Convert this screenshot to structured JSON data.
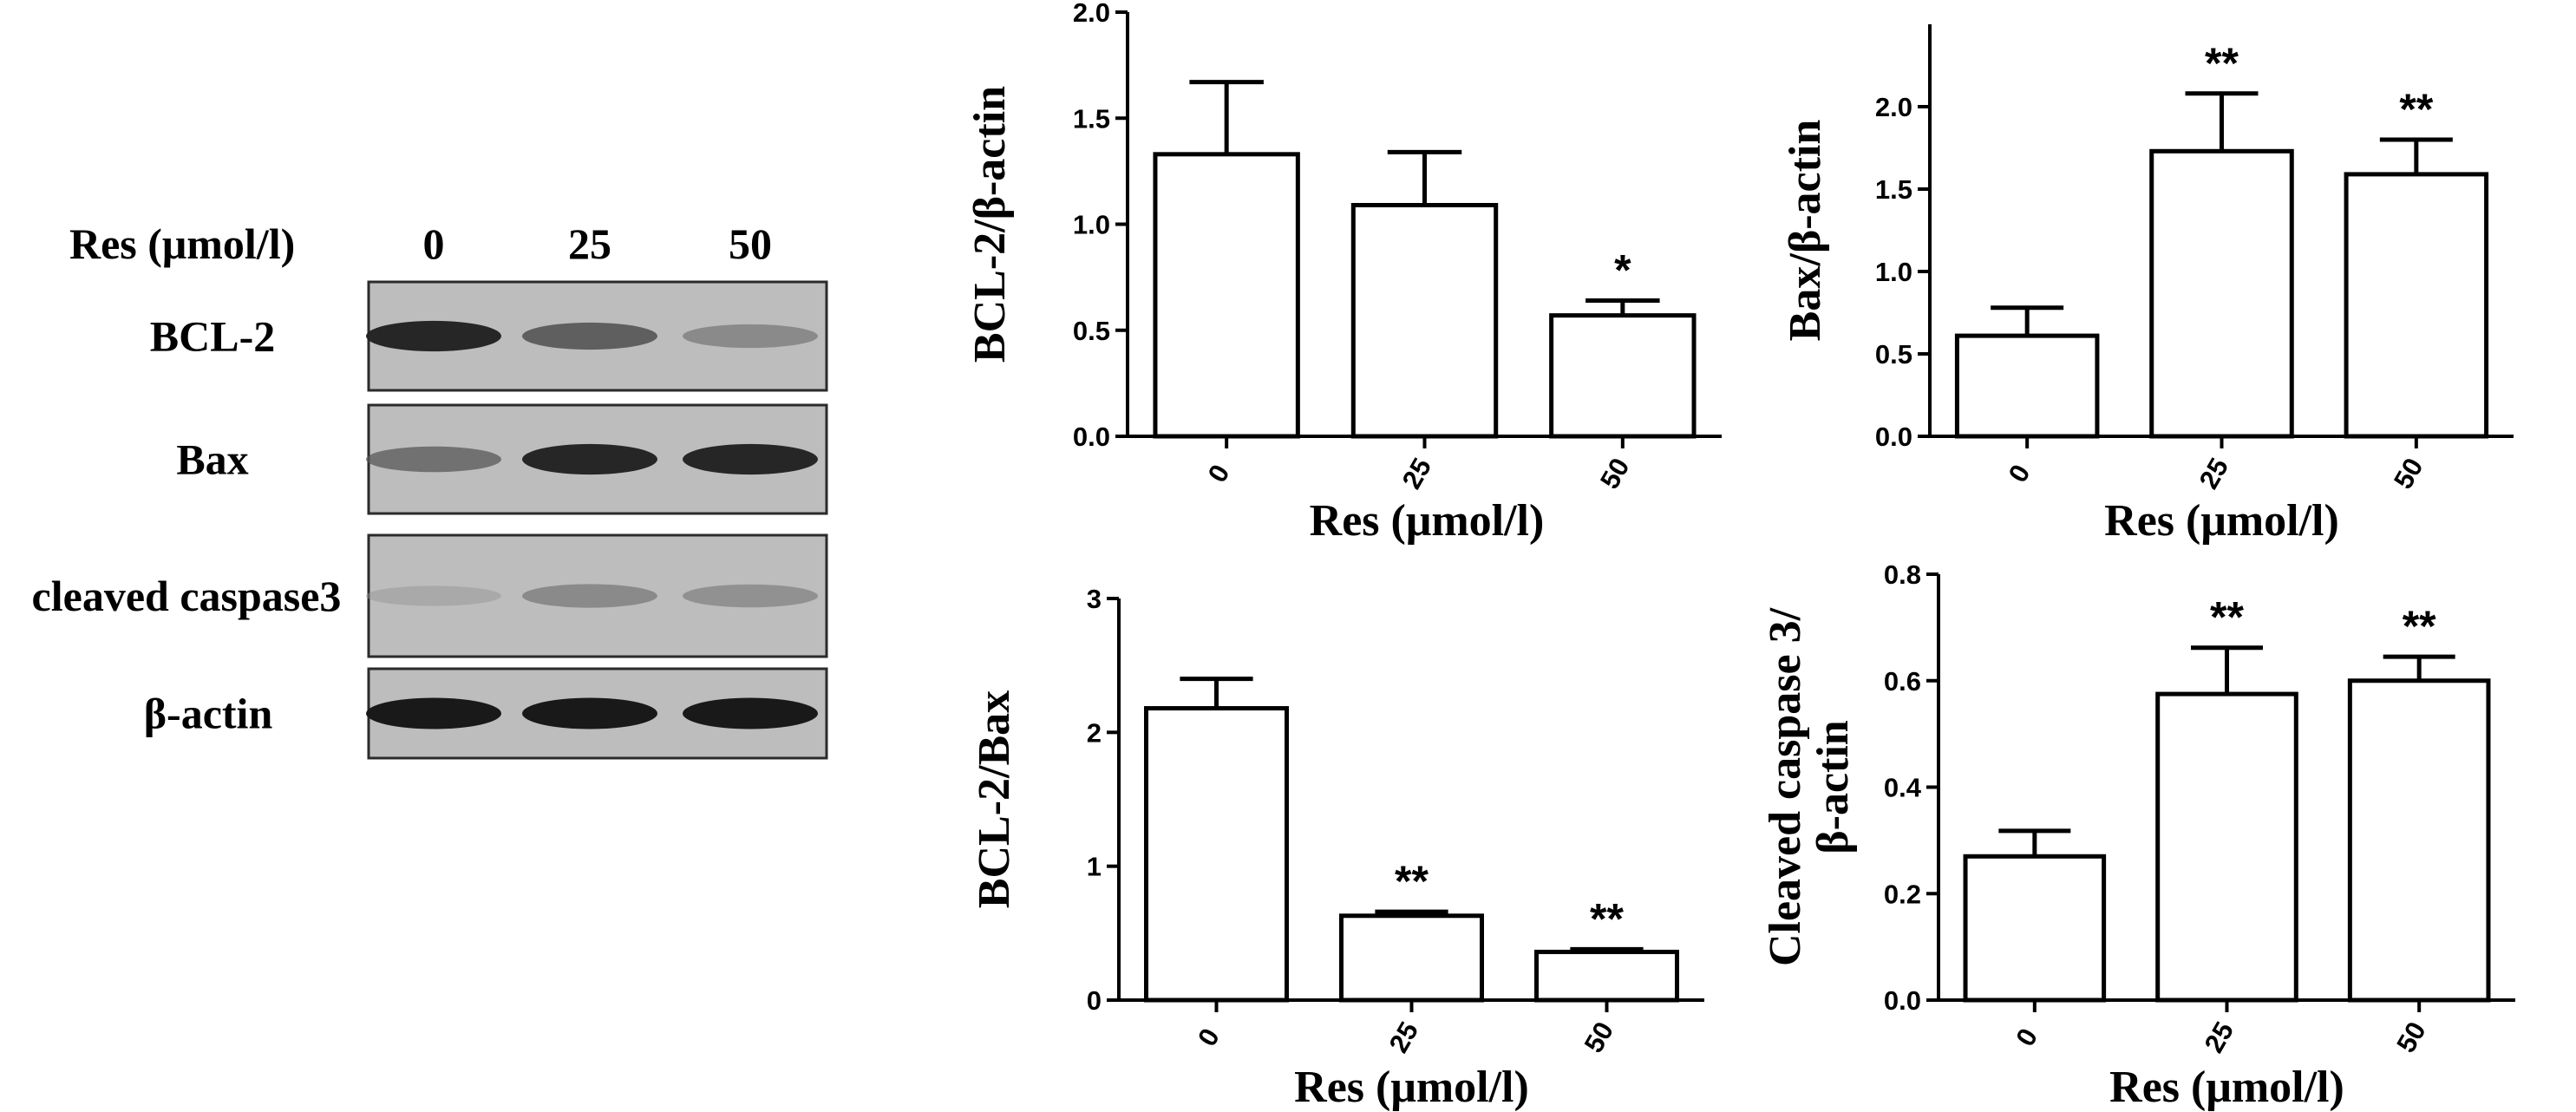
{
  "western_blot": {
    "treatment_label": "Res (μmol/l)",
    "lane_labels": [
      "0",
      "25",
      "50"
    ],
    "bands": [
      {
        "label": "BCL-2",
        "intensity": [
          0.95,
          0.7,
          0.45
        ]
      },
      {
        "label": "Bax",
        "intensity": [
          0.6,
          0.95,
          0.95
        ]
      },
      {
        "label": "cleaved caspase3",
        "intensity": [
          0.2,
          0.45,
          0.4
        ]
      },
      {
        "label": "β-actin",
        "intensity": [
          1.0,
          1.0,
          1.0
        ]
      }
    ]
  },
  "chart_data": [
    {
      "type": "bar",
      "categories": [
        "0",
        "25",
        "50"
      ],
      "values": [
        1.33,
        1.09,
        0.57
      ],
      "errors": [
        0.34,
        0.25,
        0.07
      ],
      "significance": [
        "",
        "",
        "*"
      ],
      "xlabel": "",
      "ylabel": "BCL-2/β-actin",
      "ylim": [
        0,
        2.0
      ],
      "yticks": [
        "0.0",
        "0.5",
        "1.0",
        "1.5",
        "2.0"
      ]
    },
    {
      "type": "bar",
      "categories": [
        "0",
        "25",
        "50"
      ],
      "values": [
        0.61,
        1.73,
        1.59
      ],
      "errors": [
        0.17,
        0.35,
        0.21
      ],
      "significance": [
        "",
        "**",
        "**"
      ],
      "xlabel": "Res (μmol/l)",
      "ylabel": "Bax/β-actin",
      "ylim": [
        0,
        2.5
      ],
      "yticks": [
        "0.0",
        "0.5",
        "1.0",
        "1.5",
        "2.0"
      ]
    },
    {
      "type": "bar",
      "categories": [
        "0",
        "25",
        "50"
      ],
      "values": [
        2.18,
        0.63,
        0.36
      ],
      "errors": [
        0.22,
        0.03,
        0.02
      ],
      "significance": [
        "",
        "**",
        "**"
      ],
      "xlabel": "Res (μmol/l)",
      "ylabel": "BCL-2/Bax",
      "ylim": [
        0,
        3
      ],
      "yticks": [
        "0",
        "1",
        "2",
        "3"
      ]
    },
    {
      "type": "bar",
      "categories": [
        "0",
        "25",
        "50"
      ],
      "values": [
        0.27,
        0.575,
        0.6
      ],
      "errors": [
        0.048,
        0.087,
        0.045
      ],
      "significance": [
        "",
        "**",
        "**"
      ],
      "xlabel": "Res (μmol/l)",
      "ylabel": "Cleaved caspase 3/",
      "ylabel2": "β-actin",
      "ylim": [
        0,
        0.8
      ],
      "yticks": [
        "0.0",
        "0.2",
        "0.4",
        "0.6",
        "0.8"
      ]
    }
  ]
}
